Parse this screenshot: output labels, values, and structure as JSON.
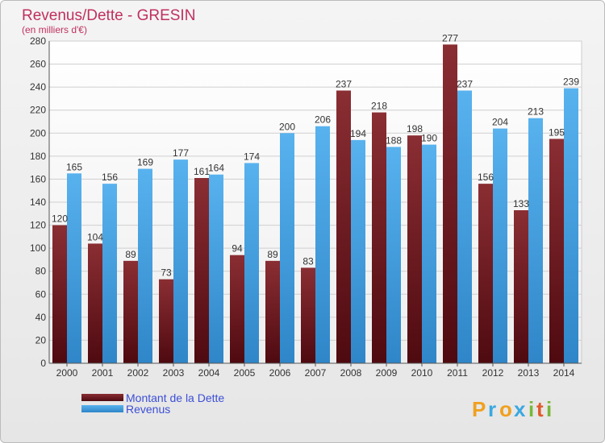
{
  "chart_data": {
    "type": "bar",
    "title": "Revenus/Dette - GRESIN",
    "subtitle": "(en milliers d'€)",
    "categories": [
      "2000",
      "2001",
      "2002",
      "2003",
      "2004",
      "2005",
      "2006",
      "2007",
      "2008",
      "2009",
      "2010",
      "2011",
      "2012",
      "2013",
      "2014"
    ],
    "series": [
      {
        "name": "Montant de la Dette",
        "color": "#7a1f25",
        "values": [
          120,
          104,
          89,
          73,
          161,
          94,
          89,
          83,
          237,
          218,
          198,
          277,
          156,
          133,
          195
        ]
      },
      {
        "name": "Revenus",
        "color": "#4ea6e6",
        "values": [
          165,
          156,
          169,
          177,
          164,
          174,
          200,
          206,
          194,
          188,
          190,
          237,
          204,
          213,
          239
        ]
      }
    ],
    "ylim": [
      0,
      280
    ],
    "yticks": [
      0,
      20,
      40,
      60,
      80,
      100,
      120,
      140,
      160,
      180,
      200,
      220,
      240,
      260,
      280
    ],
    "grid": true,
    "legend_position": "bottom-left"
  },
  "branding": {
    "logo_letters": [
      "P",
      "r",
      "o",
      "x",
      "i",
      "t",
      "i"
    ],
    "logo_colors": [
      "#f0a020",
      "#3aa8e0",
      "#f0a020",
      "#3aa8e0",
      "#78b83a",
      "#e05a2a",
      "#78b83a"
    ]
  }
}
